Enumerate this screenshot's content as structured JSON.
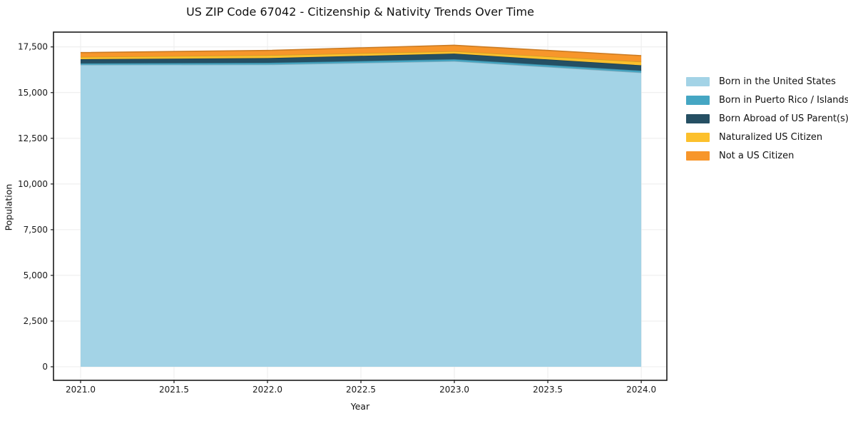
{
  "title": "US ZIP Code 67042 - Citizenship & Nativity Trends Over Time",
  "chart_data": {
    "type": "area",
    "stacked": true,
    "title": "US ZIP Code 67042 - Citizenship & Nativity Trends Over Time",
    "xlabel": "Year",
    "ylabel": "Population",
    "x": [
      2021,
      2022,
      2023,
      2024
    ],
    "series": [
      {
        "name": "Born in the United States",
        "color": "#A3D3E6",
        "values": [
          16520,
          16535,
          16720,
          16095
        ]
      },
      {
        "name": "Born in Puerto Rico / Islands",
        "color": "#45A6C3",
        "values": [
          80,
          95,
          105,
          105
        ]
      },
      {
        "name": "Born Abroad of US Parent(s)",
        "color": "#254F63",
        "values": [
          225,
          260,
          310,
          295
        ]
      },
      {
        "name": "Naturalized US Citizen",
        "color": "#FCC02C",
        "values": [
          130,
          155,
          130,
          195
        ]
      },
      {
        "name": "Not a US Citizen",
        "color": "#F7962B",
        "values": [
          235,
          260,
          325,
          330
        ]
      }
    ],
    "totals": [
      17190,
      17305,
      17590,
      17020
    ],
    "xticks": [
      2021.0,
      2021.5,
      2022.0,
      2022.5,
      2023.0,
      2023.5,
      2024.0
    ],
    "xtick_labels": [
      "2021.0",
      "2021.5",
      "2022.0",
      "2022.5",
      "2023.0",
      "2023.5",
      "2024.0"
    ],
    "yticks": [
      0,
      2500,
      5000,
      7500,
      10000,
      12500,
      15000,
      17500
    ],
    "ytick_labels": [
      "0",
      "2,500",
      "5,000",
      "7,500",
      "10,000",
      "12,500",
      "15,000",
      "17,500"
    ],
    "xlim": [
      2020.855,
      2024.137
    ],
    "ylim": [
      -742,
      18310
    ],
    "grid": true,
    "grid_color": "#ececec",
    "spine_color": "#1a1a1a",
    "legend_position": "right"
  },
  "legend": {
    "items": [
      {
        "label": "Born in the United States",
        "color": "#A3D3E6"
      },
      {
        "label": "Born in Puerto Rico / Islands",
        "color": "#45A6C3"
      },
      {
        "label": "Born Abroad of US Parent(s)",
        "color": "#254F63"
      },
      {
        "label": "Naturalized US Citizen",
        "color": "#FCC02C"
      },
      {
        "label": "Not a US Citizen",
        "color": "#F7962B"
      }
    ]
  }
}
